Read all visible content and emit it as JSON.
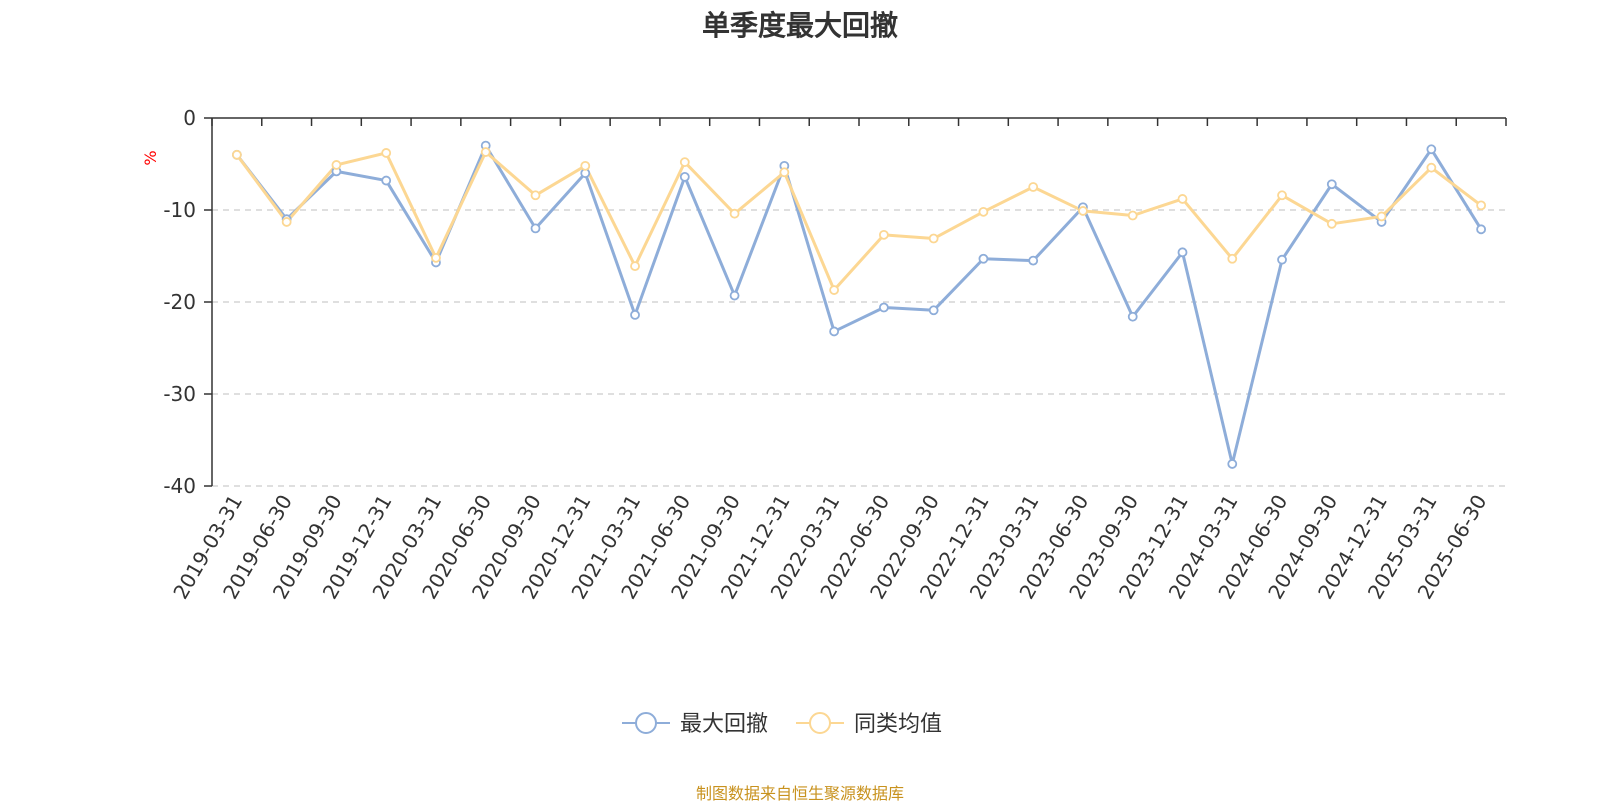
{
  "title": "单季度最大回撤",
  "source": "制图数据来自恒生聚源数据库",
  "colors": {
    "series1": "#8eadd9",
    "series2": "#fcd793",
    "unit": "#ff0000",
    "source": "#c8921e",
    "grid": "#cccccc",
    "axis": "#333333"
  },
  "chart_data": {
    "type": "line",
    "title": "单季度最大回撤",
    "ylabel": "%",
    "ylim": [
      -40,
      0
    ],
    "yticks": [
      0,
      -10,
      -20,
      -30,
      -40
    ],
    "grid": true,
    "legend_position": "bottom",
    "categories": [
      "2019-03-31",
      "2019-06-30",
      "2019-09-30",
      "2019-12-31",
      "2020-03-31",
      "2020-06-30",
      "2020-09-30",
      "2020-12-31",
      "2021-03-31",
      "2021-06-30",
      "2021-09-30",
      "2021-12-31",
      "2022-03-31",
      "2022-06-30",
      "2022-09-30",
      "2022-12-31",
      "2023-03-31",
      "2023-06-30",
      "2023-09-30",
      "2023-12-31",
      "2024-03-31",
      "2024-06-30",
      "2024-09-30",
      "2024-12-31",
      "2025-03-31",
      "2025-06-30"
    ],
    "series": [
      {
        "name": "最大回撤",
        "values": [
          -4.0,
          -11.0,
          -5.8,
          -6.8,
          -15.7,
          -3.0,
          -12.0,
          -6.0,
          -21.4,
          -6.4,
          -19.3,
          -5.2,
          -23.2,
          -20.6,
          -20.9,
          -15.3,
          -15.5,
          -9.7,
          -21.6,
          -14.6,
          -37.6,
          -15.4,
          -7.2,
          -11.3,
          -3.4,
          -12.1
        ]
      },
      {
        "name": "同类均值",
        "values": [
          -4.0,
          -11.3,
          -5.1,
          -3.8,
          -15.2,
          -3.7,
          -8.4,
          -5.2,
          -16.1,
          -4.8,
          -10.4,
          -5.9,
          -18.7,
          -12.7,
          -13.1,
          -10.2,
          -7.5,
          -10.1,
          -10.6,
          -8.8,
          -15.3,
          -8.4,
          -11.5,
          -10.7,
          -5.4,
          -9.5
        ]
      }
    ]
  }
}
